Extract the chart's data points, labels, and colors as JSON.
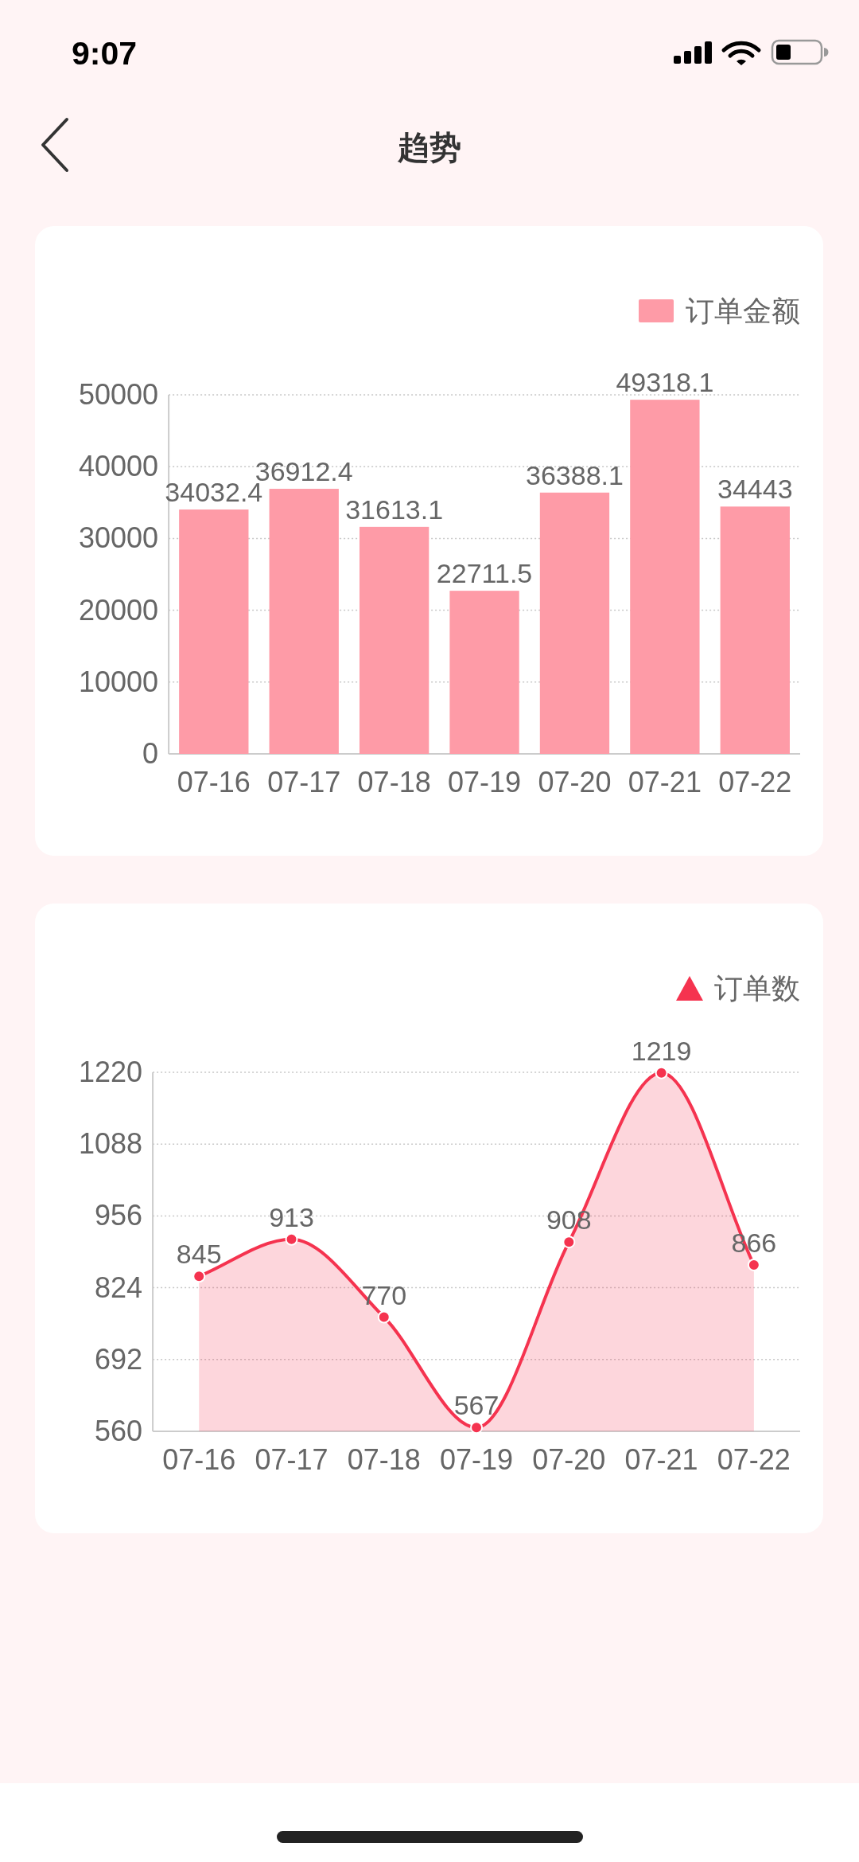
{
  "chart_data": [
    {
      "type": "other",
      "title": "趋势",
      "annotations": [
        "9:07"
      ]
    },
    {
      "type": "bar",
      "categories": [
        "07-16",
        "07-17",
        "07-18",
        "07-19",
        "07-20",
        "07-21",
        "07-22"
      ],
      "series": [
        {
          "name": "订单金额",
          "color": "#fe9ba7",
          "values": [
            34032.4,
            36912.4,
            31613.1,
            22711.5,
            36388.1,
            49318.1,
            34443
          ]
        }
      ],
      "ylim": [
        0,
        50000
      ],
      "yticks": [
        0,
        10000,
        20000,
        30000,
        40000,
        50000
      ],
      "grid": "y",
      "legend": "top right",
      "data_labels": true
    },
    {
      "type": "area",
      "categories": [
        "07-16",
        "07-17",
        "07-18",
        "07-19",
        "07-20",
        "07-21",
        "07-22"
      ],
      "series": [
        {
          "name": "订单数",
          "color": "#f5334f",
          "values": [
            845,
            913,
            770,
            567,
            908,
            1219,
            866
          ]
        }
      ],
      "ylim": [
        560,
        1220
      ],
      "yticks": [
        560,
        692,
        824,
        956,
        1088,
        1220
      ],
      "grid": "y",
      "legend": "top right",
      "data_labels": true,
      "marker": "circle"
    }
  ]
}
